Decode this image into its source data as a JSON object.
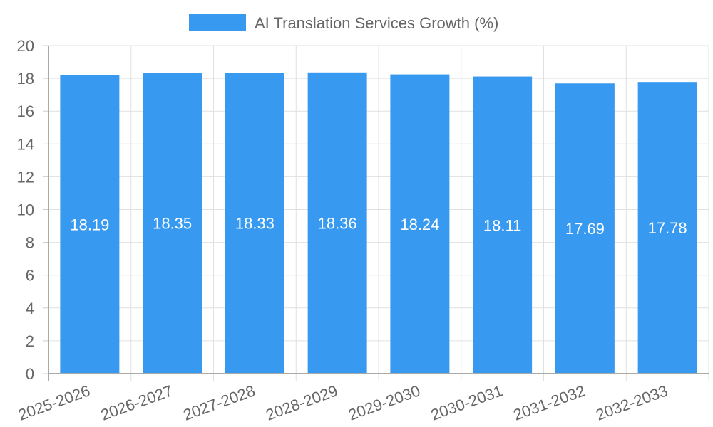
{
  "chart_data": {
    "type": "bar",
    "title": "",
    "legend": [
      {
        "label": "AI Translation Services Growth (%)",
        "color": "#379af0"
      }
    ],
    "categories": [
      "2025-2026",
      "2026-2027",
      "2027-2028",
      "2028-2029",
      "2029-2030",
      "2030-2031",
      "2031-2032",
      "2032-2033"
    ],
    "series": [
      {
        "name": "AI Translation Services Growth (%)",
        "values": [
          18.19,
          18.35,
          18.33,
          18.36,
          18.24,
          18.11,
          17.69,
          17.78
        ]
      }
    ],
    "data_labels": [
      "18.19",
      "18.35",
      "18.33",
      "18.36",
      "18.24",
      "18.11",
      "17.69",
      "17.78"
    ],
    "xlabel": "",
    "ylabel": "",
    "ylim": [
      0,
      20
    ],
    "yticks": [
      "0",
      "2",
      "4",
      "6",
      "8",
      "10",
      "12",
      "14",
      "16",
      "18",
      "20"
    ],
    "grid": true,
    "legend_position": "top",
    "bar_color": "#379af0"
  }
}
